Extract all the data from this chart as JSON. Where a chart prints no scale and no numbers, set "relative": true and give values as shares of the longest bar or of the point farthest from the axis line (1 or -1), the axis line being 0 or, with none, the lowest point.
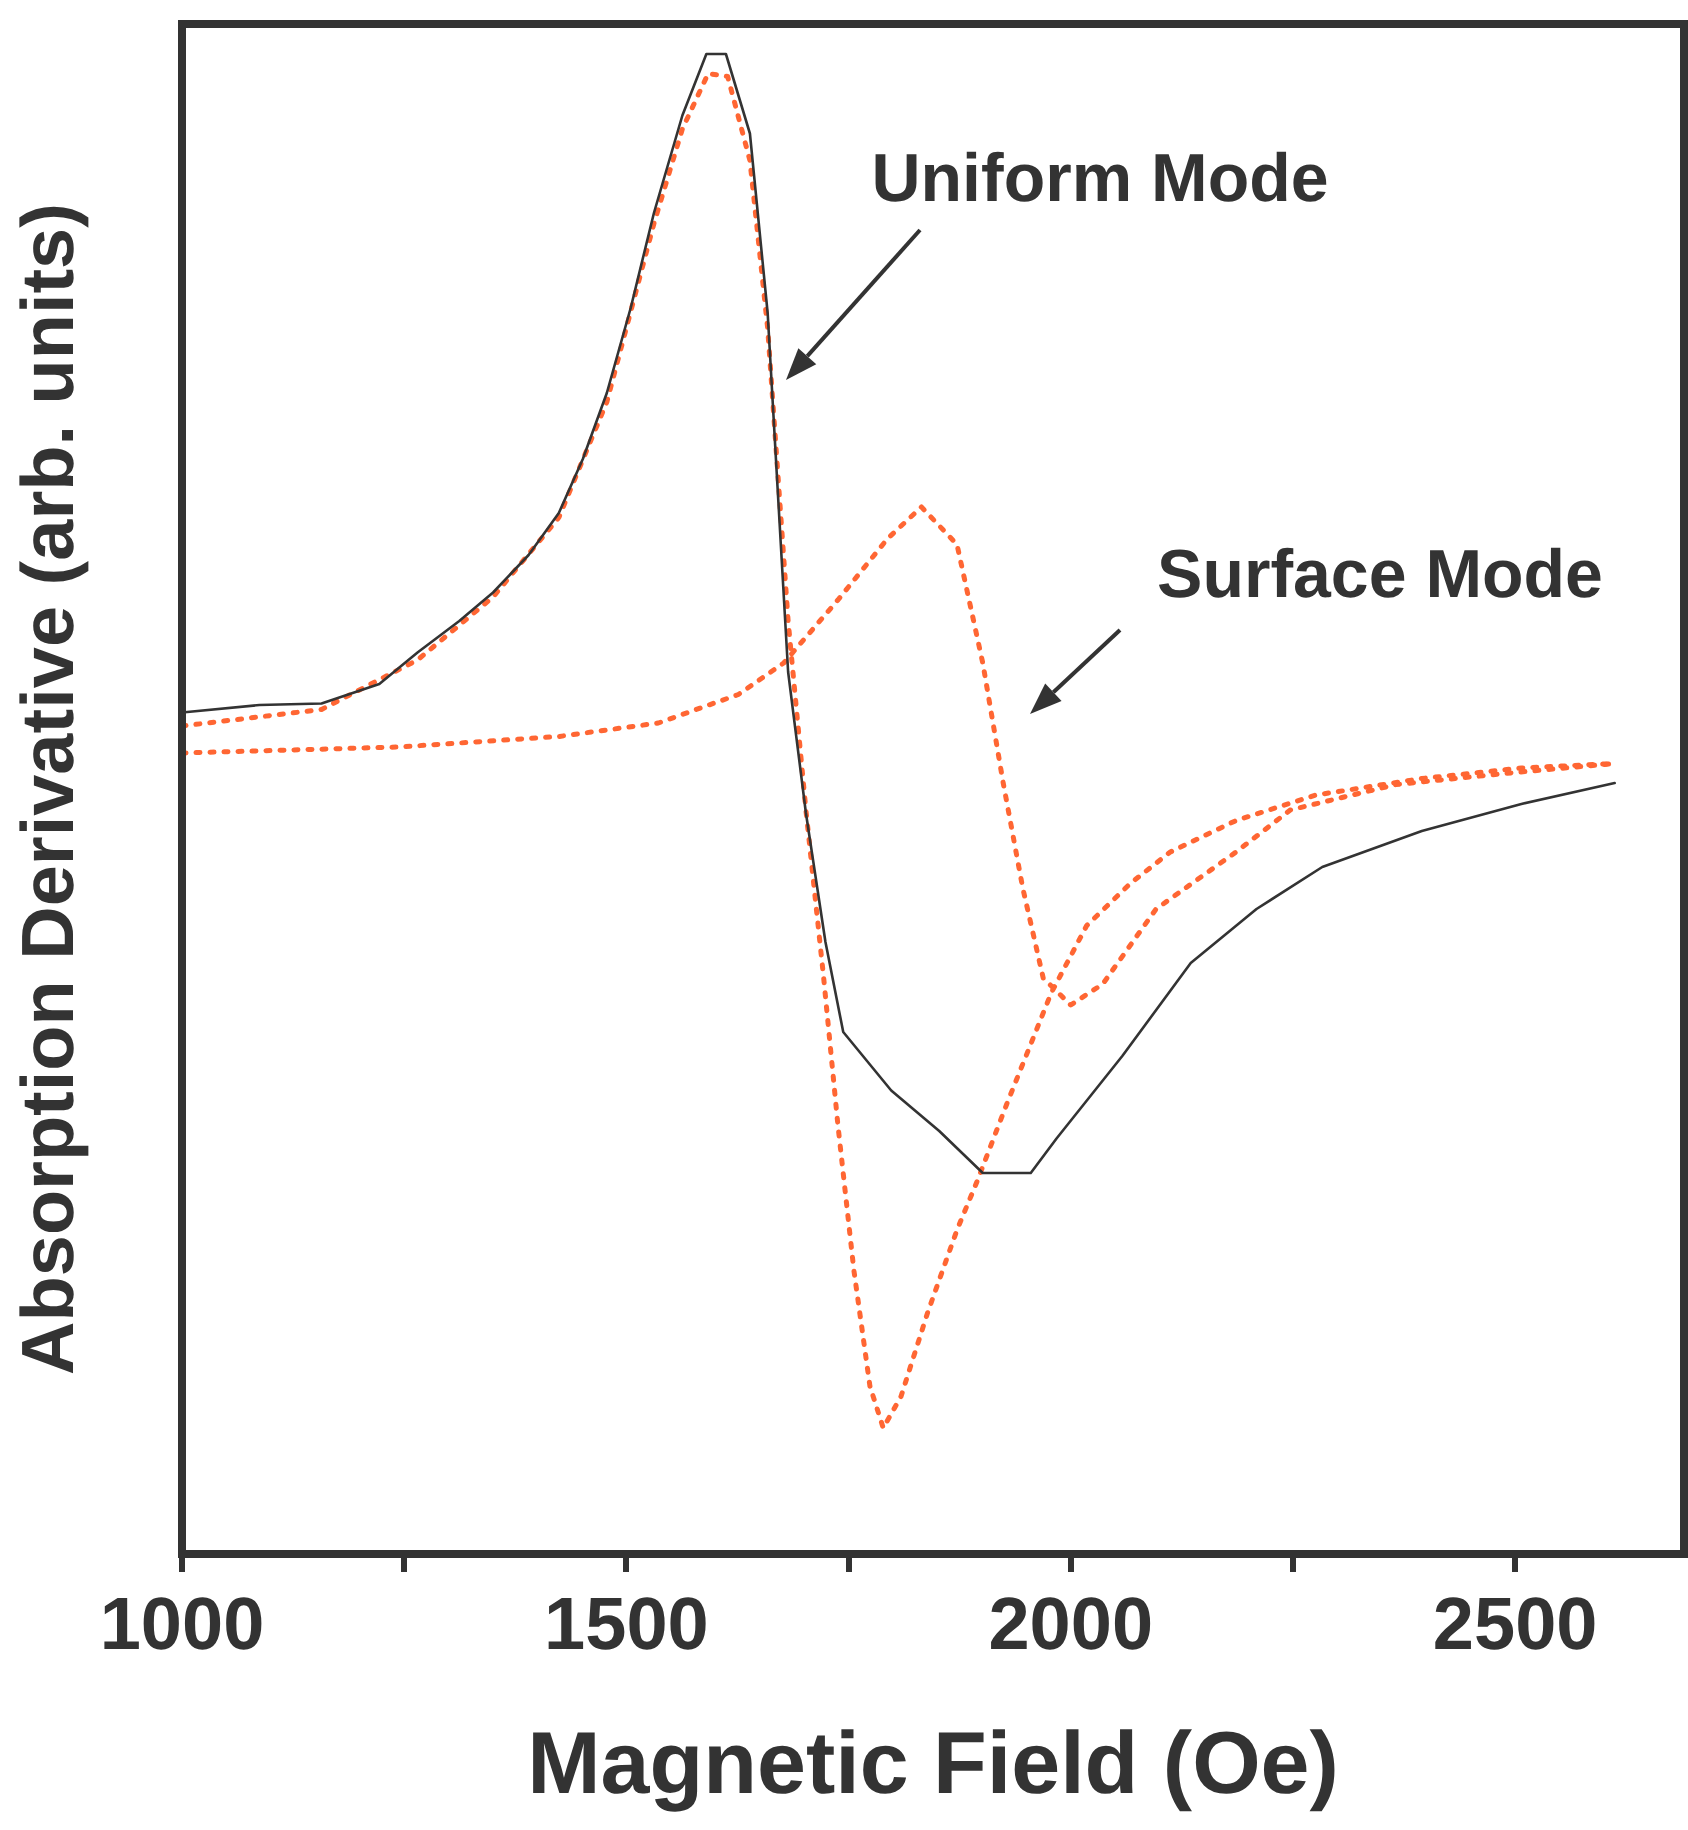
{
  "chart_data": {
    "type": "line",
    "relative": true,
    "xlabel": "Magnetic Field (Oe)",
    "ylabel": "Absorption Derivative (arb. units)",
    "xlim": [
      1000,
      2690
    ],
    "xticks": [
      1000,
      {
        "value": 1250,
        "label": null
      },
      1500,
      {
        "value": 1750,
        "label": null
      },
      2000,
      {
        "value": 2250,
        "label": null
      },
      2500
    ],
    "legend": false,
    "grid": false,
    "marker": "none",
    "annotations": [
      "Uniform Mode",
      "Surface Mode"
    ],
    "series": [
      {
        "color": "#333333",
        "line_style": "solid",
        "x": [
          1000,
          1087,
          1157,
          1222,
          1265,
          1312,
          1350,
          1390,
          1424,
          1451,
          1478,
          1505,
          1531,
          1563,
          1590,
          1612,
          1639,
          1659,
          1670,
          1682,
          1702,
          1724,
          1744,
          1798,
          1852,
          1901,
          1955,
          1984,
          2058,
          2135,
          2209,
          2283,
          2395,
          2507,
          2612
        ],
        "values": [
          0.561,
          0.566,
          0.567,
          0.58,
          0.601,
          0.622,
          0.641,
          0.666,
          0.694,
          0.73,
          0.774,
          0.831,
          0.894,
          0.959,
          1.0,
          1.0,
          0.947,
          0.827,
          0.712,
          0.588,
          0.494,
          0.408,
          0.348,
          0.309,
          0.282,
          0.254,
          0.254,
          0.277,
          0.332,
          0.394,
          0.43,
          0.458,
          0.482,
          0.5,
          0.514
        ]
      },
      {
        "color": "#ff6633",
        "line_style": "dotted",
        "x": [
          1000,
          1157,
          1265,
          1350,
          1424,
          1478,
          1531,
          1563,
          1592,
          1614,
          1639,
          1659,
          1682,
          1702,
          1722,
          1738,
          1756,
          1774,
          1789,
          1809,
          1839,
          1872,
          1895,
          1928,
          1978,
          2018,
          2067,
          2112,
          2186,
          2276,
          2395,
          2507,
          2612
        ],
        "values": [
          0.552,
          0.563,
          0.596,
          0.638,
          0.691,
          0.768,
          0.887,
          0.95,
          0.987,
          0.985,
          0.929,
          0.817,
          0.622,
          0.496,
          0.384,
          0.286,
          0.189,
          0.112,
          0.084,
          0.105,
          0.161,
          0.216,
          0.249,
          0.3,
          0.374,
          0.419,
          0.447,
          0.468,
          0.489,
          0.506,
          0.517,
          0.524,
          0.527
        ]
      },
      {
        "color": "#ff6633",
        "line_style": "dotted",
        "x": [
          1000,
          1244,
          1424,
          1536,
          1626,
          1677,
          1738,
          1794,
          1832,
          1872,
          1901,
          1924,
          1946,
          1969,
          2000,
          2036,
          2096,
          2186,
          2247,
          2366,
          2500,
          2612
        ],
        "values": [
          0.534,
          0.538,
          0.545,
          0.554,
          0.573,
          0.594,
          0.636,
          0.677,
          0.698,
          0.673,
          0.594,
          0.514,
          0.444,
          0.384,
          0.366,
          0.38,
          0.43,
          0.468,
          0.496,
          0.513,
          0.521,
          0.527
        ]
      }
    ]
  }
}
